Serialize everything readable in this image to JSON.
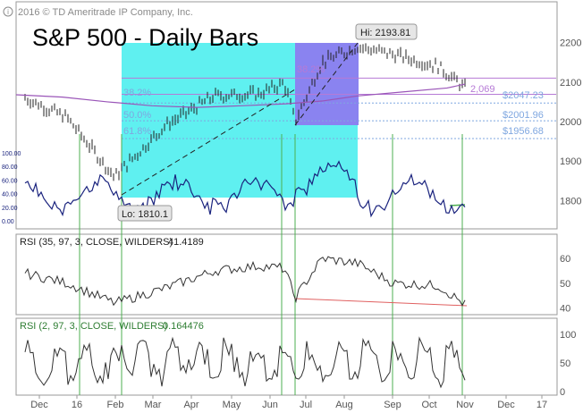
{
  "header": {
    "copyright": "2016 © TD Ameritrade IP Company, Inc.",
    "title": "S&P 500 - Daily Bars"
  },
  "colors": {
    "cyan_box": "#5ff0f0",
    "purple_box": "#8a83f0",
    "price_bars": "#222222",
    "ma_line": "#9a55b8",
    "rsi_short_line": "#1a237e",
    "fib_text": "#7fa7e0",
    "fib_text_purple": "#b67ad6",
    "marker_line": "#4caf50",
    "divergence_line": "#e06060"
  },
  "annotations": {
    "hi_label": "Hi: 2193.81",
    "lo_label": "Lo: 1810.1",
    "fib_left": [
      "38.2%",
      "50.0%",
      "61.8%"
    ],
    "fib_purple": "38.2%",
    "fib_right": [
      "2,069",
      "$2047.23",
      "$2001.96",
      "$1956.68"
    ]
  },
  "chart_data": {
    "type": "line",
    "title": "S&P 500 - Daily Bars",
    "x_ticks": [
      "Dec",
      "16",
      "Feb",
      "Mar",
      "Apr",
      "May",
      "Jun",
      "Jul",
      "Aug",
      "Sep",
      "Oct",
      "Nov",
      "Dec",
      "17"
    ],
    "price_axis_ticks": [
      "2200",
      "2100",
      "2000",
      "1900",
      "1800"
    ],
    "price_ylim": [
      1760,
      2240
    ],
    "overlay_axis_ticks": [
      "100.00",
      "80.00",
      "60.00",
      "40.00",
      "20.00",
      "0.00"
    ],
    "price_series": {
      "name": "S&P 500",
      "x": [
        "Dec",
        "16",
        "Feb",
        "Mar",
        "Apr",
        "May",
        "Jun",
        "Jun",
        "Jul",
        "Aug",
        "Sep",
        "Oct",
        "Nov"
      ],
      "values": [
        2060,
        2010,
        1860,
        1990,
        2065,
        2070,
        2098,
        2000,
        2150,
        2190,
        2170,
        2140,
        2085
      ]
    },
    "panels": [
      {
        "name": "RSI (35, 97, 3, CLOSE, WILDERS)",
        "value": "41.4189",
        "y_ticks": [
          "60",
          "50",
          "40"
        ],
        "ylim": [
          38,
          64
        ]
      },
      {
        "name": "RSI (2, 97, 3, CLOSE, WILDERS)",
        "value": "0.164476",
        "y_ticks": [
          "100",
          "50",
          "0"
        ],
        "ylim": [
          0,
          100
        ]
      }
    ]
  }
}
